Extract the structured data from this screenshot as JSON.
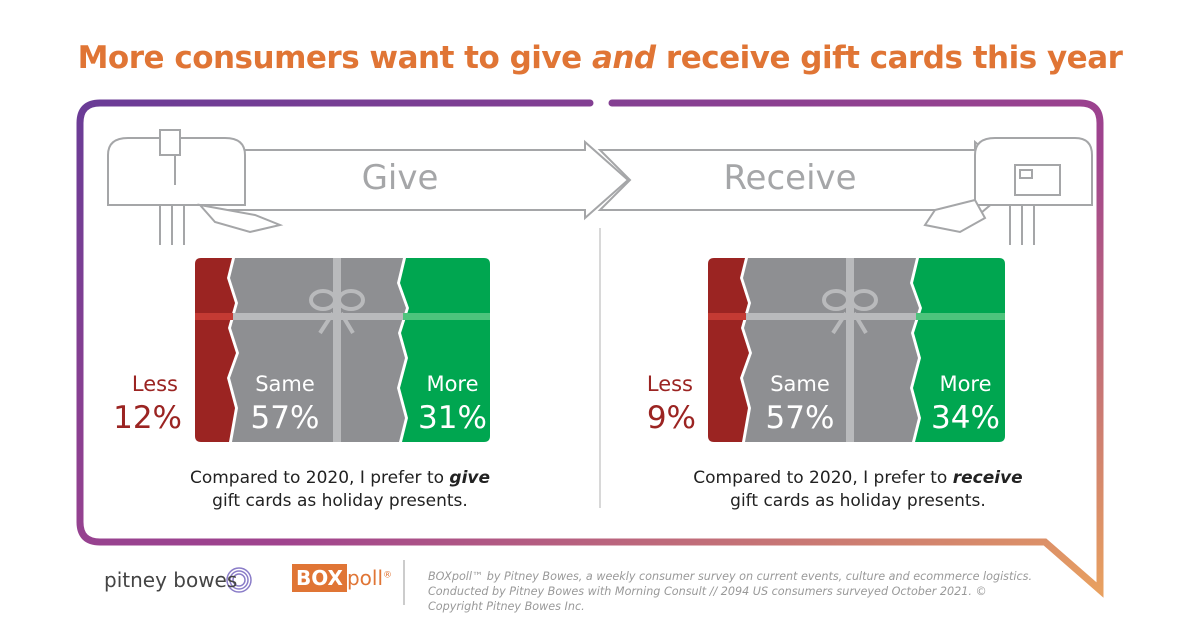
{
  "title": {
    "before": "More consumers want to give ",
    "emphasis": "and",
    "after": " receive gift cards this year"
  },
  "arrows": {
    "give_label": "Give",
    "receive_label": "Receive"
  },
  "panels": [
    {
      "less_label": "Less",
      "less_pct": "12%",
      "same_label": "Same",
      "same_pct": "57%",
      "more_label": "More",
      "more_pct": "31%",
      "caption_before": "Compared to 2020, I prefer to ",
      "caption_emphasis": "give",
      "caption_after": "gift cards as holiday presents."
    },
    {
      "less_label": "Less",
      "less_pct": "9%",
      "same_label": "Same",
      "same_pct": "57%",
      "more_label": "More",
      "more_pct": "34%",
      "caption_before": "Compared to 2020, I prefer to ",
      "caption_emphasis": "receive",
      "caption_after": "gift cards as holiday presents."
    }
  ],
  "footer": {
    "brand": "pitney bowes",
    "boxpoll_box": "BOX",
    "boxpoll_poll": "poll",
    "boxpoll_mark": "®",
    "disclaimer": "BOXpoll™ by Pitney Bowes, a weekly consumer survey on current events, culture and ecommerce logistics. Conducted by Pitney Bowes with Morning Consult  // 2094 US consumers surveyed October 2021. © Copyright Pitney Bowes Inc."
  },
  "colors": {
    "title": "#e07535",
    "less": "#9b2422",
    "same": "#8e8f92",
    "more": "#00a650",
    "frame_start": "#6a3c96",
    "frame_mid": "#a0438e",
    "frame_end": "#e8a060"
  }
}
